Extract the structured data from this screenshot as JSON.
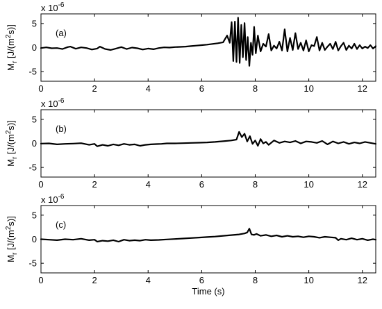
{
  "chart_data": [
    {
      "type": "line",
      "panel_label": "(a)",
      "multiplier_label": "x 10",
      "multiplier_exponent": "-6",
      "ylabel_main": "M",
      "ylabel_sub": "r",
      "ylabel_unit_open": " [J/(m",
      "ylabel_unit_sup": "2",
      "ylabel_unit_close": "s)]",
      "xlabel": "",
      "xlim": [
        0,
        12.5
      ],
      "ylim": [
        -7,
        7
      ],
      "xticks": [
        "0",
        "2",
        "4",
        "6",
        "8",
        "10",
        "12"
      ],
      "yticks": [
        "5",
        "0",
        "-5"
      ],
      "grid": false,
      "series": [
        {
          "x": [
            0,
            0.2,
            0.4,
            0.6,
            0.8,
            1.0,
            1.1,
            1.3,
            1.5,
            1.7,
            1.9,
            2.1,
            2.2,
            2.4,
            2.6,
            2.8,
            3.0,
            3.2,
            3.4,
            3.6,
            3.8,
            4.0,
            4.2,
            4.4,
            4.6,
            4.8,
            5.0,
            5.2,
            5.4,
            5.6,
            5.8,
            6.0,
            6.2,
            6.4,
            6.6,
            6.8,
            6.95,
            7.05,
            7.12,
            7.18,
            7.24,
            7.3,
            7.36,
            7.42,
            7.48,
            7.54,
            7.6,
            7.66,
            7.72,
            7.78,
            7.84,
            7.9,
            7.96,
            8.02,
            8.1,
            8.2,
            8.3,
            8.4,
            8.5,
            8.6,
            8.7,
            8.8,
            8.9,
            9.0,
            9.1,
            9.2,
            9.3,
            9.4,
            9.5,
            9.6,
            9.7,
            9.8,
            9.9,
            10.0,
            10.1,
            10.2,
            10.3,
            10.4,
            10.5,
            10.6,
            10.7,
            10.8,
            10.9,
            11.0,
            11.1,
            11.2,
            11.3,
            11.4,
            11.5,
            11.6,
            11.7,
            11.8,
            11.9,
            12.0,
            12.1,
            12.2,
            12.3,
            12.4,
            12.5
          ],
          "y": [
            -0.1,
            0.05,
            -0.15,
            -0.1,
            -0.3,
            0.1,
            0.2,
            -0.25,
            0.05,
            -0.1,
            -0.4,
            -0.2,
            0.2,
            -0.3,
            -0.5,
            -0.2,
            0.1,
            -0.3,
            0,
            -0.15,
            -0.4,
            -0.2,
            -0.35,
            -0.1,
            0.05,
            0,
            0.1,
            0.15,
            0.2,
            0.3,
            0.4,
            0.5,
            0.6,
            0.75,
            0.9,
            1.1,
            2.5,
            1.0,
            5.3,
            -2.8,
            5.4,
            -3.0,
            6.2,
            -3.2,
            4.7,
            -2.0,
            5.1,
            -2.6,
            2.2,
            -3.8,
            1.0,
            -1.5,
            4.3,
            -1.2,
            2.5,
            -0.8,
            0.8,
            0.2,
            2.8,
            -0.6,
            0.4,
            -0.2,
            1.2,
            -0.6,
            3.8,
            -0.8,
            2.0,
            -0.5,
            3.0,
            -0.3,
            1.0,
            -0.6,
            1.5,
            -0.8,
            0.5,
            0.3,
            2.2,
            -0.6,
            1.0,
            -0.5,
            0.2,
            0.8,
            -0.3,
            1.2,
            -0.6,
            0.3,
            1.0,
            -0.5,
            0.4,
            -0.2,
            0.8,
            -0.3,
            0.5,
            -0.2,
            0.2,
            -0.1,
            0.5,
            -0.2,
            0.3
          ]
        }
      ]
    },
    {
      "type": "line",
      "panel_label": "(b)",
      "multiplier_label": "x 10",
      "multiplier_exponent": "-6",
      "ylabel_main": "M",
      "ylabel_sub": "r",
      "ylabel_unit_open": " [J/(m",
      "ylabel_unit_sup": "2",
      "ylabel_unit_close": "s)]",
      "xlabel": "",
      "xlim": [
        0,
        12.5
      ],
      "ylim": [
        -7,
        7
      ],
      "xticks": [
        "0",
        "2",
        "4",
        "6",
        "8",
        "10",
        "12"
      ],
      "yticks": [
        "5",
        "0",
        "-5"
      ],
      "grid": false,
      "series": [
        {
          "x": [
            0,
            0.3,
            0.6,
            0.9,
            1.2,
            1.5,
            1.8,
            2.0,
            2.1,
            2.3,
            2.5,
            2.7,
            2.9,
            3.1,
            3.3,
            3.5,
            3.7,
            3.9,
            4.1,
            4.3,
            4.5,
            4.7,
            5.0,
            5.3,
            5.6,
            5.9,
            6.2,
            6.5,
            6.8,
            7.1,
            7.3,
            7.4,
            7.5,
            7.6,
            7.7,
            7.8,
            7.9,
            8.0,
            8.1,
            8.2,
            8.3,
            8.4,
            8.5,
            8.7,
            8.9,
            9.1,
            9.3,
            9.5,
            9.7,
            9.9,
            10.1,
            10.3,
            10.5,
            10.7,
            10.9,
            11.1,
            11.3,
            11.5,
            11.7,
            11.9,
            12.1,
            12.3,
            12.5
          ],
          "y": [
            -0.05,
            0,
            -0.2,
            -0.1,
            -0.05,
            0.05,
            -0.3,
            -0.1,
            -0.6,
            -0.3,
            -0.5,
            -0.2,
            -0.4,
            -0.1,
            -0.3,
            -0.2,
            -0.5,
            -0.3,
            -0.2,
            -0.15,
            -0.1,
            0,
            0,
            0.05,
            0.1,
            0.15,
            0.2,
            0.3,
            0.45,
            0.6,
            0.8,
            2.4,
            1.3,
            2.0,
            0.4,
            1.5,
            -0.1,
            0.6,
            -0.5,
            0.9,
            0,
            0.3,
            -0.3,
            0.6,
            0.1,
            0.4,
            0.2,
            0.5,
            0,
            0.4,
            0.3,
            0.1,
            0.5,
            -0.2,
            0.4,
            0,
            0.3,
            -0.1,
            0.2,
            0,
            0.3,
            0.1,
            -0.1
          ]
        }
      ]
    },
    {
      "type": "line",
      "panel_label": "(c)",
      "multiplier_label": "x 10",
      "multiplier_exponent": "-6",
      "ylabel_main": "M",
      "ylabel_sub": "r",
      "ylabel_unit_open": " [J/(m",
      "ylabel_unit_sup": "2",
      "ylabel_unit_close": "s)]",
      "xlabel": "Time (s)",
      "xlim": [
        0,
        12.5
      ],
      "ylim": [
        -7,
        7
      ],
      "xticks": [
        "0",
        "2",
        "4",
        "6",
        "8",
        "10",
        "12"
      ],
      "yticks": [
        "5",
        "0",
        "-5"
      ],
      "grid": false,
      "series": [
        {
          "x": [
            0,
            0.3,
            0.6,
            0.9,
            1.2,
            1.5,
            1.8,
            2.0,
            2.1,
            2.3,
            2.5,
            2.7,
            2.9,
            3.1,
            3.3,
            3.5,
            3.7,
            3.9,
            4.1,
            4.4,
            4.7,
            5.0,
            5.3,
            5.6,
            5.9,
            6.2,
            6.5,
            6.8,
            7.1,
            7.4,
            7.6,
            7.7,
            7.78,
            7.86,
            7.95,
            8.05,
            8.2,
            8.4,
            8.6,
            8.8,
            9.0,
            9.2,
            9.4,
            9.6,
            9.8,
            10.0,
            10.2,
            10.4,
            10.6,
            10.8,
            11.0,
            11.1,
            11.2,
            11.4,
            11.6,
            11.8,
            12.0,
            12.2,
            12.4,
            12.5
          ],
          "y": [
            0,
            -0.1,
            -0.2,
            0,
            -0.1,
            0.1,
            -0.2,
            -0.1,
            -0.5,
            -0.3,
            -0.4,
            -0.2,
            -0.5,
            -0.1,
            -0.3,
            -0.2,
            -0.3,
            -0.1,
            -0.2,
            -0.15,
            -0.05,
            0.05,
            0.15,
            0.25,
            0.35,
            0.45,
            0.55,
            0.7,
            0.85,
            1.0,
            1.2,
            1.4,
            2.2,
            1.0,
            0.9,
            1.1,
            0.7,
            0.9,
            0.6,
            0.8,
            0.5,
            0.7,
            0.5,
            0.6,
            0.4,
            0.6,
            0.5,
            0.3,
            0.5,
            0.4,
            0.3,
            -0.2,
            0.1,
            -0.1,
            0.2,
            -0.1,
            0.1,
            -0.2,
            0,
            -0.1
          ]
        }
      ]
    }
  ]
}
